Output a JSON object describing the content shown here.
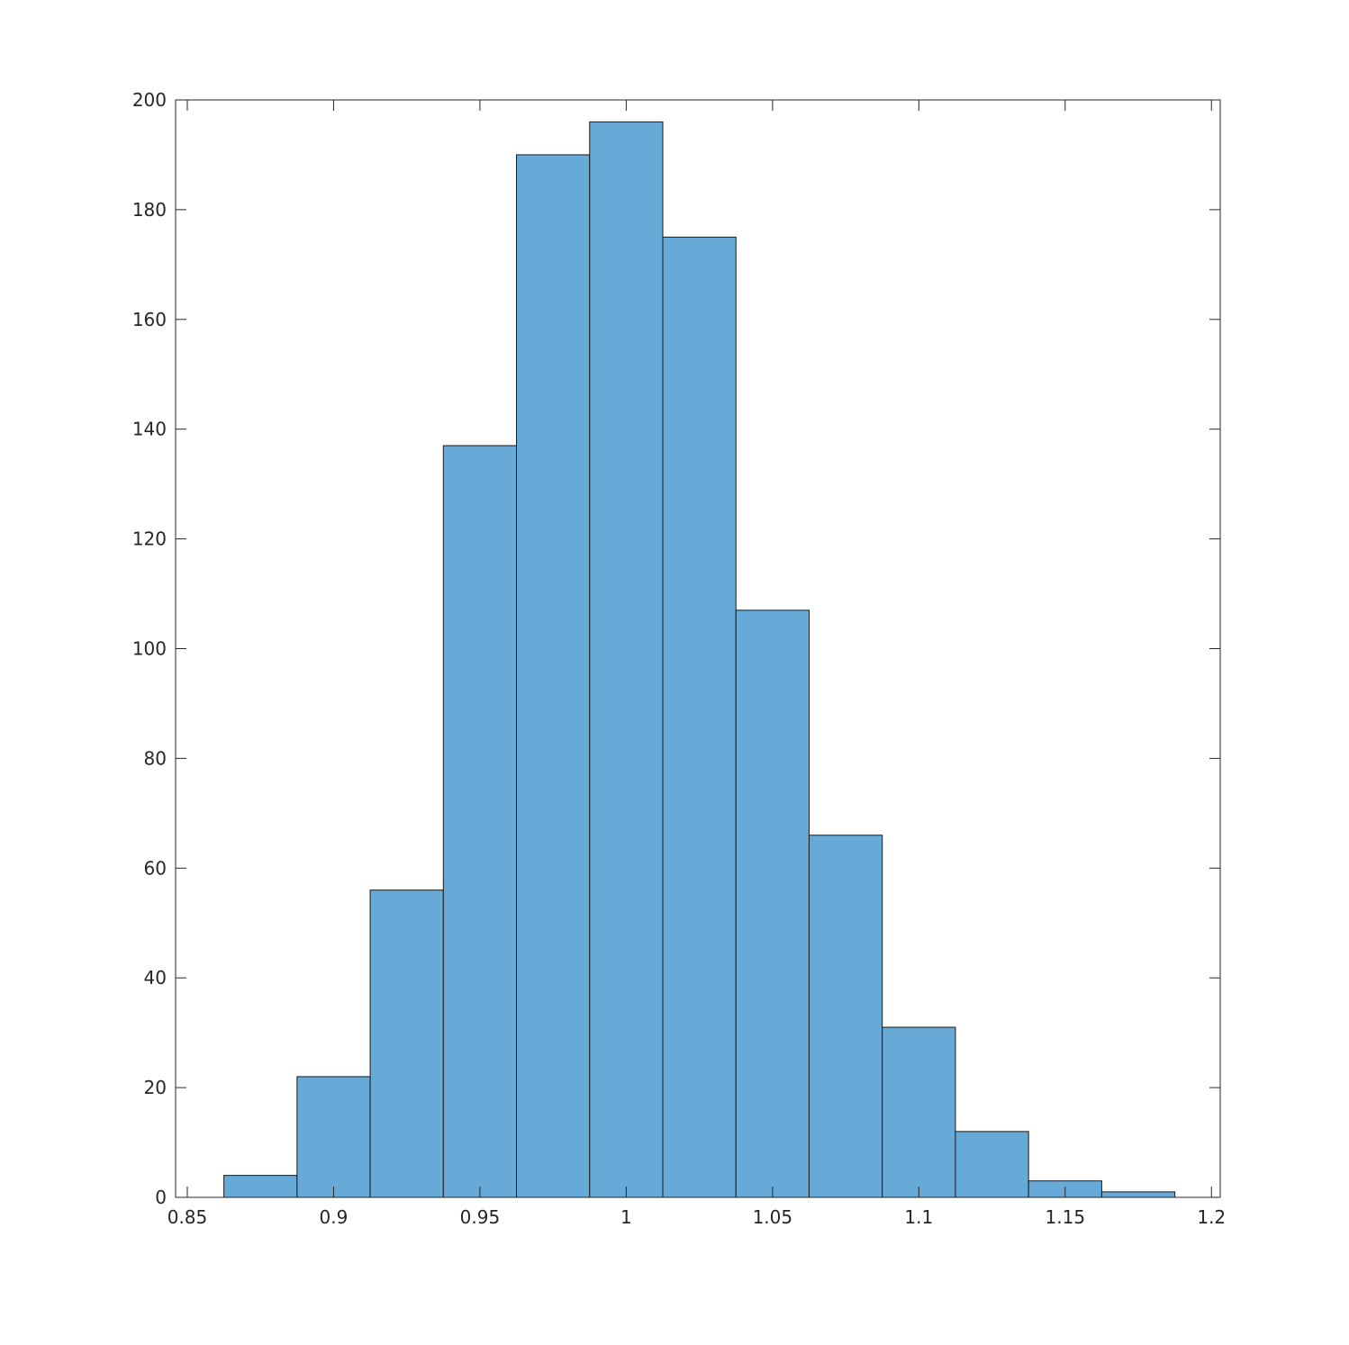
{
  "chart_data": {
    "type": "bar",
    "subtype": "histogram",
    "title": "",
    "xlabel": "",
    "ylabel": "",
    "bar_color": "#67aad7",
    "edge_color": "#1a1a1a",
    "bin_width": 0.025,
    "bins": [
      {
        "start": 0.8625,
        "end": 0.8875,
        "count": 4
      },
      {
        "start": 0.8875,
        "end": 0.9125,
        "count": 22
      },
      {
        "start": 0.9125,
        "end": 0.9375,
        "count": 56
      },
      {
        "start": 0.9375,
        "end": 0.9625,
        "count": 137
      },
      {
        "start": 0.9625,
        "end": 0.9875,
        "count": 190
      },
      {
        "start": 0.9875,
        "end": 1.0125,
        "count": 196
      },
      {
        "start": 1.0125,
        "end": 1.0375,
        "count": 175
      },
      {
        "start": 1.0375,
        "end": 1.0625,
        "count": 107
      },
      {
        "start": 1.0625,
        "end": 1.0875,
        "count": 66
      },
      {
        "start": 1.0875,
        "end": 1.1125,
        "count": 31
      },
      {
        "start": 1.1125,
        "end": 1.1375,
        "count": 12
      },
      {
        "start": 1.1375,
        "end": 1.1625,
        "count": 3
      },
      {
        "start": 1.1625,
        "end": 1.1875,
        "count": 1
      }
    ],
    "xlim": [
      0.846,
      1.203
    ],
    "ylim": [
      0,
      200
    ],
    "xticks": [
      0.85,
      0.9,
      0.95,
      1,
      1.05,
      1.1,
      1.15,
      1.2
    ],
    "xtick_labels": [
      "0.85",
      "0.9",
      "0.95",
      "1",
      "1.05",
      "1.1",
      "1.15",
      "1.2"
    ],
    "yticks": [
      0,
      20,
      40,
      60,
      80,
      100,
      120,
      140,
      160,
      180,
      200
    ],
    "ytick_labels": [
      "0",
      "20",
      "40",
      "60",
      "80",
      "100",
      "120",
      "140",
      "160",
      "180",
      "200"
    ],
    "grid": false,
    "legend": "none"
  }
}
